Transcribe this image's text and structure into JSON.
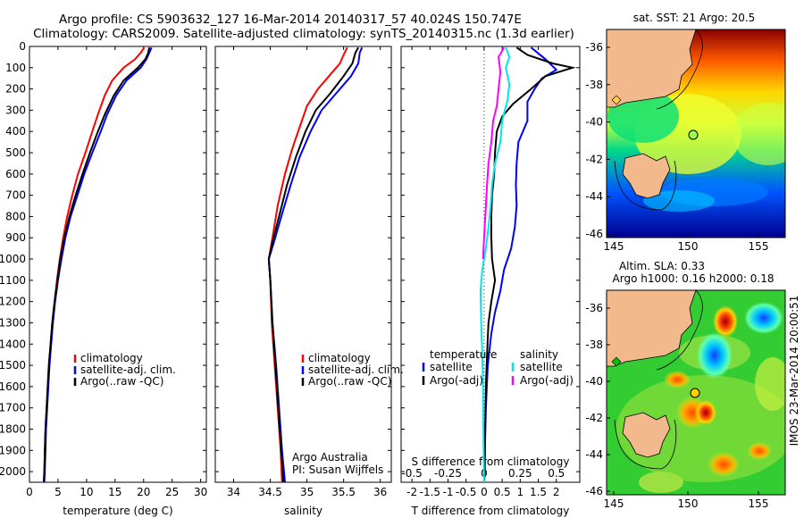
{
  "header": {
    "line1": "Argo profile: CS 5903632_127 16-Mar-2014 20140317_57 40.024S 150.747E",
    "line2": "Climatology: CARS2009. Satellite-adjusted climatology: synTS_20140315.nc (1.3d earlier)"
  },
  "colors": {
    "clim": "#ff0000",
    "sat": "#0000ff",
    "argo": "#000000",
    "cyan": "#00e5ee",
    "magenta": "#ff00ff",
    "land": "#f2ba8c",
    "green_marker": "#00c000",
    "yellow_marker": "#ffcc44"
  },
  "chart_data": [
    {
      "type": "line",
      "xlabel": "temperature (deg C)",
      "ylabel": "",
      "xlim": [
        0,
        31
      ],
      "ylim": [
        2050,
        0
      ],
      "xticks": [
        0,
        5,
        10,
        15,
        20,
        25,
        30
      ],
      "yticks": [
        0,
        100,
        200,
        300,
        400,
        500,
        600,
        700,
        800,
        900,
        1000,
        1100,
        1200,
        1300,
        1400,
        1500,
        1600,
        1700,
        1800,
        1900,
        2000
      ],
      "legend": [
        "climatology",
        "satellite-adj. clim.",
        "Argo(..raw -QC)"
      ],
      "legend_position": "lower-center",
      "series": [
        {
          "color": "clim",
          "points": [
            [
              20.1,
              5
            ],
            [
              19.5,
              30
            ],
            [
              18.5,
              60
            ],
            [
              16.5,
              100
            ],
            [
              14.5,
              160
            ],
            [
              13.2,
              230
            ],
            [
              12.0,
              320
            ],
            [
              11.0,
              400
            ],
            [
              9.8,
              500
            ],
            [
              8.5,
              600
            ],
            [
              7.5,
              700
            ],
            [
              6.6,
              800
            ],
            [
              5.9,
              900
            ],
            [
              5.3,
              1000
            ],
            [
              4.8,
              1100
            ],
            [
              4.4,
              1200
            ],
            [
              4.0,
              1300
            ],
            [
              3.7,
              1400
            ],
            [
              3.4,
              1500
            ],
            [
              3.2,
              1600
            ],
            [
              3.0,
              1700
            ],
            [
              2.8,
              1800
            ],
            [
              2.7,
              1900
            ],
            [
              2.6,
              2000
            ],
            [
              2.5,
              2050
            ]
          ]
        },
        {
          "color": "sat",
          "points": [
            [
              21.4,
              5
            ],
            [
              21.0,
              30
            ],
            [
              20.5,
              60
            ],
            [
              19.5,
              100
            ],
            [
              17.0,
              160
            ],
            [
              15.2,
              230
            ],
            [
              13.6,
              320
            ],
            [
              12.5,
              400
            ],
            [
              11.0,
              500
            ],
            [
              9.6,
              600
            ],
            [
              8.4,
              700
            ],
            [
              7.2,
              800
            ],
            [
              6.3,
              900
            ],
            [
              5.6,
              1000
            ],
            [
              5.0,
              1100
            ],
            [
              4.5,
              1200
            ],
            [
              4.1,
              1300
            ],
            [
              3.8,
              1400
            ],
            [
              3.5,
              1500
            ],
            [
              3.3,
              1600
            ],
            [
              3.1,
              1700
            ],
            [
              2.9,
              1800
            ],
            [
              2.8,
              1900
            ],
            [
              2.7,
              2000
            ],
            [
              2.6,
              2050
            ]
          ]
        },
        {
          "color": "argo",
          "points": [
            [
              21.0,
              5
            ],
            [
              20.8,
              30
            ],
            [
              20.3,
              60
            ],
            [
              19.0,
              100
            ],
            [
              16.5,
              160
            ],
            [
              14.8,
              230
            ],
            [
              13.2,
              320
            ],
            [
              12.0,
              400
            ],
            [
              10.6,
              500
            ],
            [
              9.3,
              600
            ],
            [
              8.1,
              700
            ],
            [
              7.0,
              800
            ],
            [
              6.1,
              900
            ],
            [
              5.4,
              1000
            ],
            [
              4.9,
              1100
            ],
            [
              4.4,
              1200
            ],
            [
              4.0,
              1300
            ],
            [
              3.7,
              1400
            ],
            [
              3.4,
              1500
            ],
            [
              3.2,
              1600
            ],
            [
              3.0,
              1700
            ],
            [
              2.8,
              1800
            ],
            [
              2.7,
              1900
            ],
            [
              2.6,
              2000
            ],
            [
              2.5,
              2050
            ]
          ]
        }
      ]
    },
    {
      "type": "line",
      "xlabel": "salinity",
      "ylabel": "",
      "xlim": [
        33.75,
        36.15
      ],
      "ylim": [
        2050,
        0
      ],
      "xticks": [
        34,
        34.5,
        35,
        35.5,
        36
      ],
      "legend": [
        "climatology",
        "satellite-adj. clim.",
        "Argo(..raw -QC)"
      ],
      "legend_position": "lower-center",
      "annotations": [
        "Argo Australia",
        "PI: Susan Wijffels"
      ],
      "series": [
        {
          "color": "clim",
          "points": [
            [
              35.55,
              5
            ],
            [
              35.5,
              40
            ],
            [
              35.45,
              80
            ],
            [
              35.3,
              140
            ],
            [
              35.15,
              200
            ],
            [
              35.0,
              280
            ],
            [
              34.9,
              380
            ],
            [
              34.8,
              480
            ],
            [
              34.7,
              600
            ],
            [
              34.6,
              750
            ],
            [
              34.53,
              900
            ],
            [
              34.48,
              1000
            ],
            [
              34.5,
              1100
            ],
            [
              34.52,
              1300
            ],
            [
              34.56,
              1500
            ],
            [
              34.6,
              1700
            ],
            [
              34.64,
              1900
            ],
            [
              34.66,
              2050
            ]
          ]
        },
        {
          "color": "sat",
          "points": [
            [
              35.75,
              5
            ],
            [
              35.72,
              30
            ],
            [
              35.7,
              80
            ],
            [
              35.6,
              140
            ],
            [
              35.4,
              220
            ],
            [
              35.2,
              300
            ],
            [
              35.05,
              400
            ],
            [
              34.9,
              520
            ],
            [
              34.78,
              650
            ],
            [
              34.65,
              800
            ],
            [
              34.55,
              920
            ],
            [
              34.48,
              1000
            ],
            [
              34.5,
              1100
            ],
            [
              34.53,
              1300
            ],
            [
              34.58,
              1500
            ],
            [
              34.62,
              1700
            ],
            [
              34.66,
              1900
            ],
            [
              34.7,
              2050
            ]
          ]
        },
        {
          "color": "argo",
          "points": [
            [
              35.7,
              5
            ],
            [
              35.66,
              30
            ],
            [
              35.62,
              80
            ],
            [
              35.5,
              140
            ],
            [
              35.32,
              220
            ],
            [
              35.12,
              300
            ],
            [
              34.98,
              400
            ],
            [
              34.85,
              520
            ],
            [
              34.73,
              650
            ],
            [
              34.62,
              800
            ],
            [
              34.53,
              920
            ],
            [
              34.48,
              1000
            ],
            [
              34.5,
              1100
            ],
            [
              34.53,
              1300
            ],
            [
              34.57,
              1500
            ],
            [
              34.61,
              1700
            ],
            [
              34.65,
              1900
            ],
            [
              34.68,
              2050
            ]
          ]
        }
      ]
    },
    {
      "type": "line",
      "xlabel": "T difference from climatology",
      "xlabel_top": "S difference from climatology",
      "xlim": [
        -2.3,
        2.65
      ],
      "ylim": [
        2050,
        0
      ],
      "xticks": [
        -2,
        -1.5,
        -1,
        -0.5,
        0,
        0.5,
        1,
        1.5,
        2
      ],
      "xticklabels": [
        "-2",
        "-1.5",
        "-1",
        "-0.5",
        "0",
        "0.5",
        "1",
        "1.5",
        "2"
      ],
      "xticks_top": [
        -0.5,
        -0.25,
        0,
        0.25,
        0.5
      ],
      "legend": [
        "temperature",
        "satellite",
        "Argo(-adj)",
        "salinity",
        "satellite",
        "Argo(-adj)"
      ],
      "legend_position": "lower-center",
      "series": [
        {
          "color": "sat",
          "points": [
            [
              1.3,
              5
            ],
            [
              1.7,
              60
            ],
            [
              2.0,
              110
            ],
            [
              1.6,
              150
            ],
            [
              1.4,
              200
            ],
            [
              1.2,
              260
            ],
            [
              1.2,
              350
            ],
            [
              0.95,
              450
            ],
            [
              0.9,
              550
            ],
            [
              0.88,
              650
            ],
            [
              0.9,
              750
            ],
            [
              0.85,
              850
            ],
            [
              0.75,
              950
            ],
            [
              0.55,
              1050
            ],
            [
              0.45,
              1150
            ],
            [
              0.3,
              1250
            ],
            [
              0.2,
              1350
            ],
            [
              0.1,
              1500
            ],
            [
              0.05,
              1700
            ],
            [
              0.02,
              1900
            ],
            [
              0.0,
              2050
            ]
          ]
        },
        {
          "color": "argo",
          "points": [
            [
              0.9,
              5
            ],
            [
              1.2,
              40
            ],
            [
              1.9,
              80
            ],
            [
              2.45,
              100
            ],
            [
              1.7,
              140
            ],
            [
              1.3,
              200
            ],
            [
              0.8,
              270
            ],
            [
              0.5,
              330
            ],
            [
              0.35,
              400
            ],
            [
              0.3,
              500
            ],
            [
              0.28,
              600
            ],
            [
              0.22,
              700
            ],
            [
              0.2,
              800
            ],
            [
              0.2,
              900
            ],
            [
              0.22,
              1000
            ],
            [
              0.3,
              1100
            ],
            [
              0.2,
              1200
            ],
            [
              0.12,
              1300
            ],
            [
              0.08,
              1450
            ],
            [
              0.05,
              1600
            ],
            [
              0.03,
              1800
            ],
            [
              0.02,
              2000
            ],
            [
              0.0,
              2050
            ]
          ]
        },
        {
          "color": "cyan",
          "points": [
            [
              0.6,
              5
            ],
            [
              0.7,
              50
            ],
            [
              0.6,
              100
            ],
            [
              0.7,
              180
            ],
            [
              0.65,
              250
            ],
            [
              0.5,
              350
            ],
            [
              0.45,
              450
            ],
            [
              0.3,
              550
            ],
            [
              0.22,
              650
            ],
            [
              0.18,
              750
            ],
            [
              0.12,
              850
            ],
            [
              0.05,
              950
            ],
            [
              -0.05,
              1050
            ],
            [
              -0.1,
              1150
            ],
            [
              -0.08,
              1300
            ],
            [
              -0.05,
              1450
            ],
            [
              -0.03,
              1600
            ],
            [
              -0.02,
              1800
            ],
            [
              0.0,
              2050
            ]
          ]
        },
        {
          "color": "magenta",
          "points": [
            [
              0.55,
              5
            ],
            [
              0.4,
              50
            ],
            [
              0.45,
              120
            ],
            [
              0.4,
              200
            ],
            [
              0.35,
              280
            ],
            [
              0.25,
              350
            ],
            [
              0.2,
              450
            ],
            [
              0.12,
              550
            ],
            [
              0.08,
              650
            ],
            [
              0.05,
              750
            ],
            [
              0.0,
              900
            ],
            [
              -0.03,
              1000
            ]
          ]
        }
      ]
    }
  ],
  "maps": {
    "sst": {
      "title": "sat. SST: 21 Argo: 20.5",
      "yticklabels": [
        "-36",
        "-38",
        "-40",
        "-42",
        "-44",
        "-46"
      ],
      "xticklabels": [
        "145",
        "150",
        "155"
      ]
    },
    "sla": {
      "title1": "Altim. SLA: 0.33",
      "title2": "Argo h1000: 0.16 h2000: 0.18",
      "yticklabels": [
        "-36",
        "-38",
        "-40",
        "-42",
        "-44",
        "-46"
      ],
      "xticklabels": [
        "145",
        "150",
        "155"
      ]
    }
  },
  "side_label": "IMOS 23-Mar-2014 20:00:51"
}
